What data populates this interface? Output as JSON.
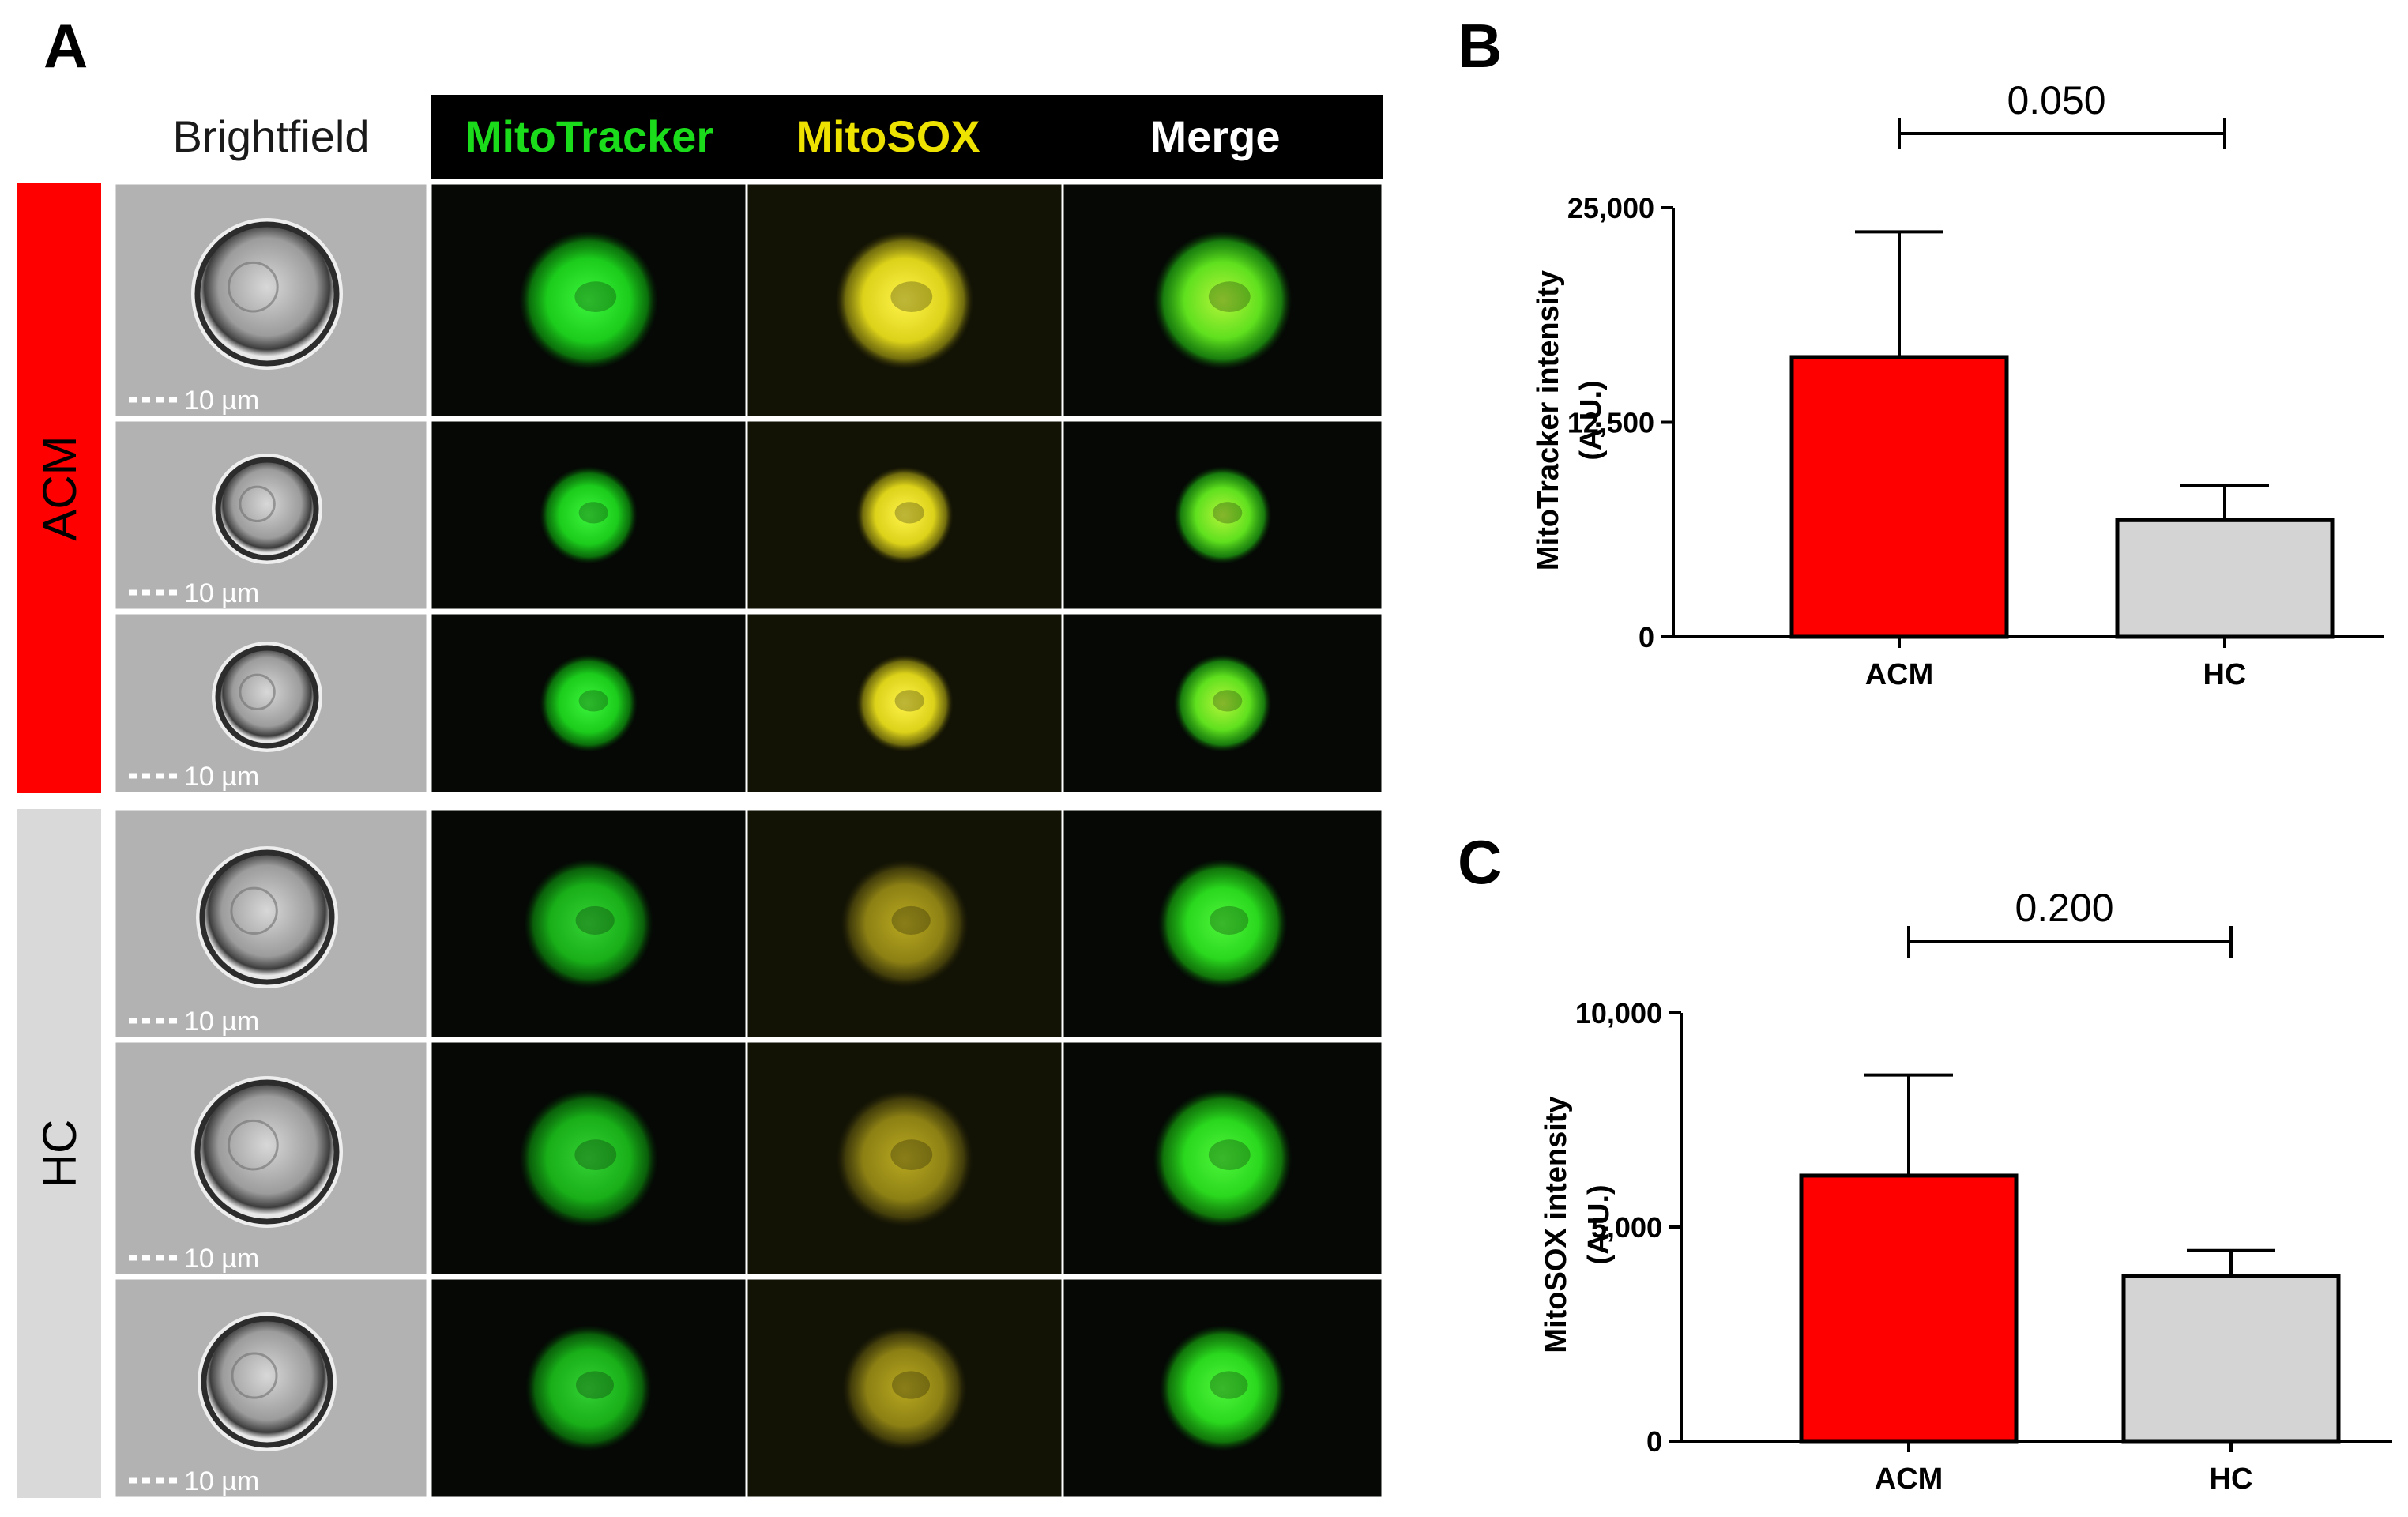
{
  "figure": {
    "panel_a": {
      "letter": "A",
      "column_headers": [
        "Brightfield",
        "MitoTracker",
        "MitoSOX",
        "Merge"
      ],
      "groups": [
        {
          "label": "ACM",
          "color": "#ff0000",
          "rows": 3
        },
        {
          "label": "HC",
          "color": "#d9d9d9",
          "rows": 3
        }
      ],
      "scale_bar_label": "10 µm",
      "channel_colors": {
        "mitotracker": "#18e018",
        "mitosox": "#e8e800",
        "merge": "#ffffff"
      }
    },
    "panel_b": {
      "letter": "B"
    },
    "panel_c": {
      "letter": "C"
    }
  },
  "chart_data": [
    {
      "type": "bar",
      "panel": "B",
      "categories": [
        "ACM",
        "HC"
      ],
      "values": [
        16300,
        6800
      ],
      "errors": [
        7300,
        2000
      ],
      "colors": [
        "#ff0000",
        "#d4d4d4"
      ],
      "ylabel": "MitoTracker intensity (A.U.)",
      "ylabel_lines": [
        "MitoTracker intensity",
        "(A.U.)"
      ],
      "ylim": [
        0,
        25000
      ],
      "yticks": [
        0,
        12500,
        25000
      ],
      "ytick_labels": [
        "0",
        "12,500",
        "25,000"
      ],
      "annotation": "0.050"
    },
    {
      "type": "bar",
      "panel": "C",
      "categories": [
        "ACM",
        "HC"
      ],
      "values": [
        6200,
        3850
      ],
      "errors": [
        2350,
        600
      ],
      "colors": [
        "#ff0000",
        "#d4d4d4"
      ],
      "ylabel": "MitoSOX intensity (A.U.)",
      "ylabel_lines": [
        "MitoSOX intensity",
        "(A.U.)"
      ],
      "ylim": [
        0,
        10000
      ],
      "yticks": [
        0,
        5000,
        10000
      ],
      "ytick_labels": [
        "0",
        "5,000",
        "10,000"
      ],
      "annotation": "0.200"
    }
  ]
}
